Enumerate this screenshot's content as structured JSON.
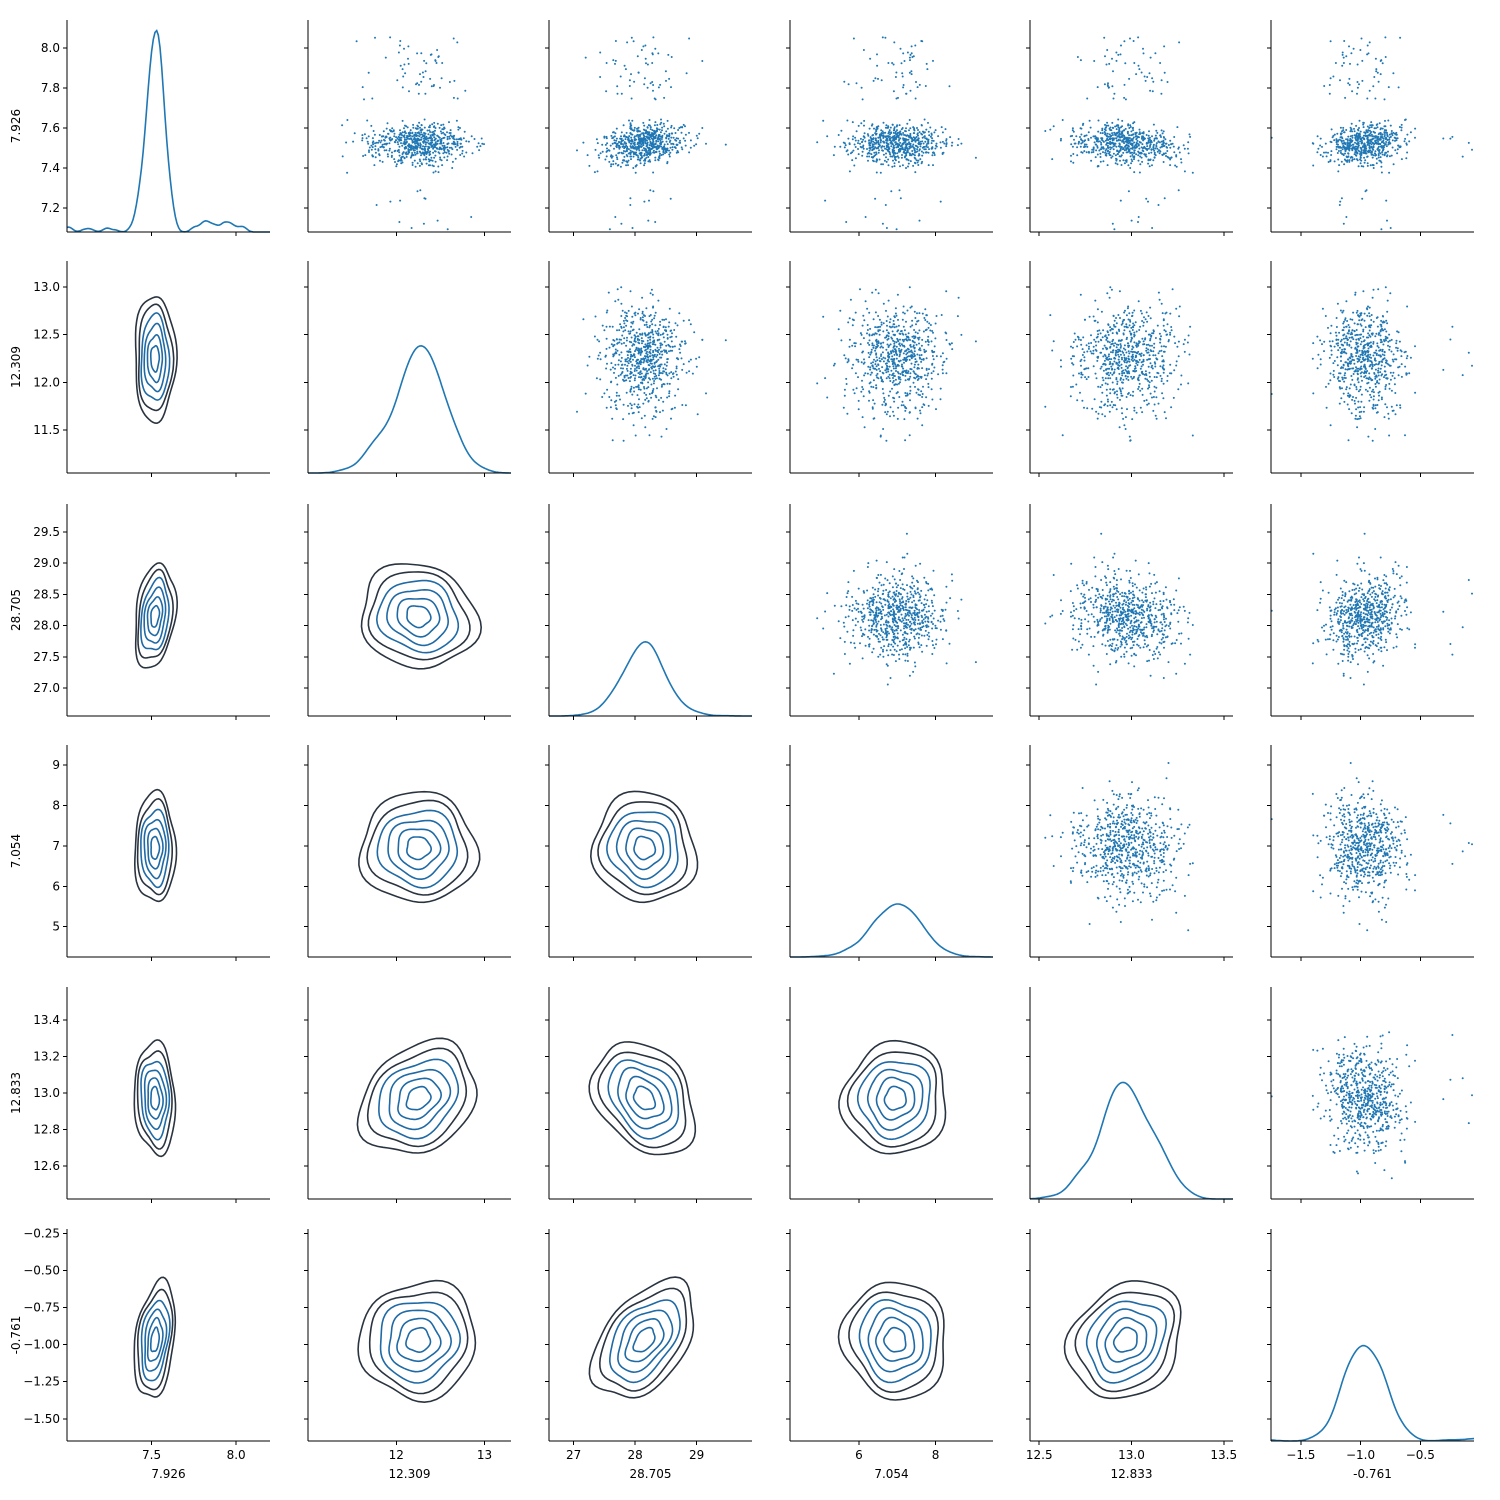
{
  "chart_data": {
    "type": "pairplot",
    "variables": [
      "7.926",
      "12.309",
      "28.705",
      "7.054",
      "12.833",
      "-0.761"
    ],
    "upper": "scatter",
    "diagonal": "kde",
    "lower": "kde-contour",
    "n_points": 700,
    "colors": {
      "scatter": "#1f77b4",
      "diag_line": "#1f77b4",
      "contour_outer": "#2a3440",
      "contour_inner": "#1f6aa5"
    },
    "axes": [
      {
        "label": "7.926",
        "lim": [
          7.0,
          8.2
        ],
        "ticks": [
          7.5,
          8.0
        ],
        "yticks": [
          7.2,
          7.4,
          7.6,
          7.8,
          8.0
        ],
        "ylim": [
          7.08,
          8.14
        ],
        "center": 7.52,
        "sd": 0.055,
        "outliers": 0.1
      },
      {
        "label": "12.309",
        "lim": [
          11.0,
          13.3
        ],
        "ticks": [
          12,
          13
        ],
        "yticks": [
          11.5,
          12.0,
          12.5,
          13.0
        ],
        "ylim": [
          11.05,
          13.27
        ],
        "center": 12.25,
        "sd": 0.3,
        "outliers": 0
      },
      {
        "label": "28.705",
        "lim": [
          26.6,
          29.9
        ],
        "ticks": [
          27,
          28,
          29
        ],
        "yticks": [
          27.0,
          27.5,
          28.0,
          28.5,
          29.0,
          29.5
        ],
        "ylim": [
          26.55,
          29.95
        ],
        "center": 28.15,
        "sd": 0.38,
        "outliers": 0
      },
      {
        "label": "7.054",
        "lim": [
          4.2,
          9.5
        ],
        "ticks": [
          6,
          8
        ],
        "yticks": [
          5,
          6,
          7,
          8,
          9
        ],
        "ylim": [
          4.25,
          9.5
        ],
        "center": 6.95,
        "sd": 0.62,
        "outliers": 0
      },
      {
        "label": "12.833",
        "lim": [
          12.45,
          13.55
        ],
        "ticks": [
          12.5,
          13.0,
          13.5
        ],
        "yticks": [
          12.6,
          12.8,
          13.0,
          13.2,
          13.4
        ],
        "ylim": [
          12.42,
          13.58
        ],
        "center": 12.97,
        "sd": 0.14,
        "outliers": 0
      },
      {
        "label": "-0.761",
        "lim": [
          -1.75,
          -0.05
        ],
        "ticks": [
          -1.5,
          -1.0,
          -0.5
        ],
        "yticks": [
          -1.5,
          -1.25,
          -1.0,
          -0.75,
          -0.5,
          -0.25
        ],
        "ylim": [
          -1.65,
          -0.22
        ],
        "center": -0.97,
        "sd": 0.18,
        "outliers": 0.07
      }
    ],
    "correlations": [
      [
        1,
        0,
        0.25,
        0,
        -0.1,
        0.3
      ],
      [
        0,
        1,
        -0.1,
        0,
        0.25,
        0.05
      ],
      [
        0.25,
        -0.1,
        1,
        -0.05,
        -0.3,
        0.45
      ],
      [
        0,
        0,
        -0.05,
        1,
        0.05,
        -0.05
      ],
      [
        -0.1,
        0.25,
        -0.3,
        0.05,
        1,
        0.2
      ],
      [
        0.3,
        0.05,
        0.45,
        -0.05,
        0.2,
        1
      ]
    ]
  }
}
